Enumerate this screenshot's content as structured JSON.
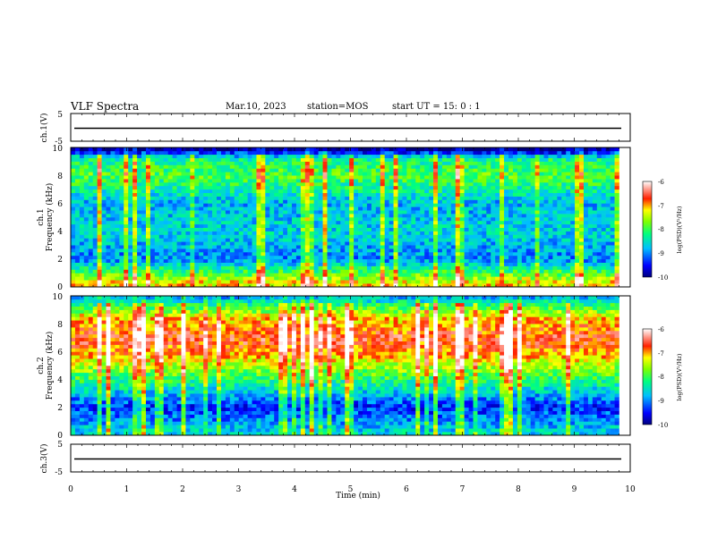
{
  "header": {
    "title": "VLF Spectra",
    "date": "Mar.10, 2023",
    "station": "station=MOS",
    "start_ut": "start UT =  15: 0  : 1"
  },
  "chart_data": [
    {
      "type": "line",
      "name": "ch1-waveform",
      "ylabel": "ch.1(V)",
      "ylim": [
        -5,
        5
      ],
      "yticks": [
        "5",
        "-5"
      ],
      "x": [
        0,
        10
      ],
      "values": [
        0,
        0
      ]
    },
    {
      "type": "heatmap",
      "name": "ch1-spectrogram",
      "ylabel_lines": [
        "ch.1",
        "Frequency (kHz)"
      ],
      "ylim": [
        0,
        10
      ],
      "yticks": [
        "0",
        "2",
        "4",
        "6",
        "8",
        "10"
      ],
      "xlim": [
        0,
        10
      ],
      "data_end_min": 9.8,
      "colorbar": {
        "label": "log(PSD)(V²/Hz)",
        "range": [
          -10,
          -6
        ],
        "ticks": [
          "-6",
          "-7",
          "-8",
          "-9",
          "-10"
        ]
      },
      "intensity_profile_khz": [
        [
          0.3,
          -7.2
        ],
        [
          2.0,
          -9.0
        ],
        [
          4.0,
          -8.6
        ],
        [
          6.0,
          -8.8
        ],
        [
          8.0,
          -7.9
        ],
        [
          9.2,
          -8.3
        ],
        [
          9.9,
          -10.0
        ]
      ]
    },
    {
      "type": "heatmap",
      "name": "ch2-spectrogram",
      "ylabel_lines": [
        "ch.2",
        "Frequency (kHz)"
      ],
      "ylim": [
        0,
        10
      ],
      "yticks": [
        "0",
        "2",
        "4",
        "6",
        "8",
        "10"
      ],
      "xlim": [
        0,
        10
      ],
      "data_end_min": 9.8,
      "colorbar": {
        "label": "log(PSD)(V²/Hz)",
        "range": [
          -10,
          -6
        ],
        "ticks": [
          "-6",
          "-7",
          "-8",
          "-9",
          "-10"
        ]
      },
      "intensity_profile_khz": [
        [
          0.3,
          -8.6
        ],
        [
          2.0,
          -9.4
        ],
        [
          4.0,
          -8.1
        ],
        [
          6.0,
          -6.9
        ],
        [
          7.0,
          -6.6
        ],
        [
          8.5,
          -7.2
        ],
        [
          9.9,
          -8.8
        ]
      ]
    },
    {
      "type": "line",
      "name": "ch3-waveform",
      "ylabel": "ch.3(V)",
      "ylim": [
        -5,
        5
      ],
      "yticks": [
        "5",
        "-5"
      ],
      "x": [
        0,
        10
      ],
      "values": [
        0,
        0
      ]
    }
  ],
  "xaxis": {
    "label": "Time (min)",
    "ticks": [
      "0",
      "1",
      "2",
      "3",
      "4",
      "5",
      "6",
      "7",
      "8",
      "9",
      "10"
    ],
    "range": [
      0,
      10
    ]
  }
}
